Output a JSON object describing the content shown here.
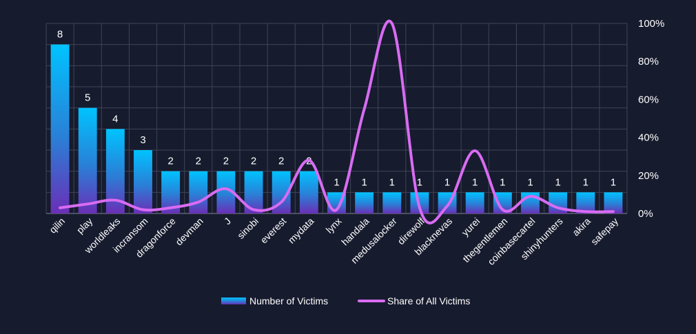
{
  "chart_data": {
    "type": "bar",
    "categories": [
      "qilin",
      "play",
      "worldleaks",
      "incransom",
      "dragonforce",
      "devman",
      "J",
      "sinobi",
      "everest",
      "mydata",
      "lynx",
      "handala",
      "medusalocker",
      "direwolf",
      "blacknevas",
      "yurei",
      "thegentlemen",
      "coinbasecartel",
      "shinyhunters",
      "akira",
      "safepay"
    ],
    "series": [
      {
        "name": "Number of Victims",
        "type": "bar",
        "axis": "left",
        "values": [
          8,
          5,
          4,
          3,
          2,
          2,
          2,
          2,
          2,
          2,
          1,
          1,
          1,
          1,
          1,
          1,
          1,
          1,
          1,
          1,
          1
        ],
        "data_labels": [
          "8",
          "5",
          "4",
          "3",
          "2",
          "2",
          "2",
          "2",
          "2",
          "2",
          "1",
          "1",
          "1",
          "1",
          "1",
          "1",
          "1",
          "1",
          "1",
          "1",
          "1"
        ]
      },
      {
        "name": "Share of All Victims",
        "type": "line",
        "axis": "right",
        "values": [
          3,
          5,
          7,
          2,
          3,
          6,
          13,
          2,
          6,
          28,
          2,
          55,
          100,
          3,
          4,
          33,
          2,
          9,
          3,
          1,
          1
        ]
      }
    ],
    "left_axis": {
      "range": [
        0,
        9
      ],
      "gridlines": 9,
      "show_labels": false
    },
    "right_axis": {
      "range": [
        0,
        100
      ],
      "ticks": [
        0,
        20,
        40,
        60,
        80,
        100
      ],
      "tick_labels": [
        "0%",
        "20%",
        "40%",
        "60%",
        "80%",
        "100%"
      ]
    },
    "legend": {
      "position": "bottom"
    },
    "colors": {
      "background": "#171b2e",
      "bar_top": "#00c3ff",
      "bar_mid": "#2a7fd6",
      "bar_bottom": "#6a2fb6",
      "line": "#d86cf2",
      "grid": "#3f4458",
      "text": "#ffffff"
    }
  }
}
